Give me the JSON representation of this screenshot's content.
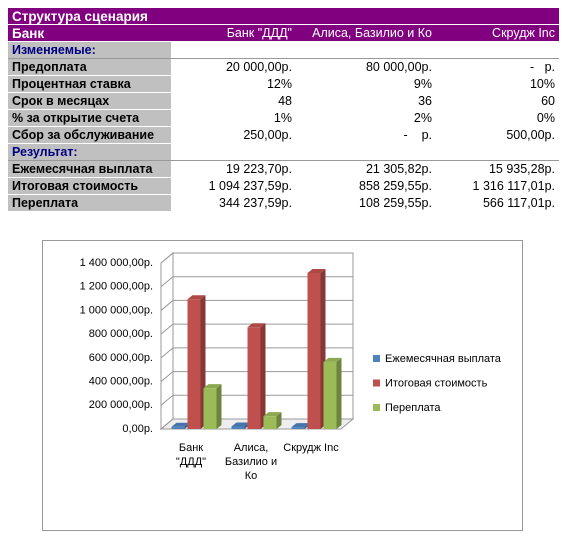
{
  "table": {
    "title": "Структура сценария",
    "header": [
      "Банк",
      "Банк \"ДДД\"",
      "Алиса, Базилио и Ко",
      "Скрудж Inc"
    ],
    "sections": [
      {
        "label": "Изменяемые:",
        "rows": [
          [
            "Предоплата",
            "20 000,00р.",
            "80 000,00р.",
            "-   р."
          ],
          [
            "Процентная ставка",
            "12%",
            "9%",
            "10%"
          ],
          [
            "Срок в месяцах",
            "48",
            "36",
            "60"
          ],
          [
            "% за открытие счета",
            "1%",
            "2%",
            "0%"
          ],
          [
            "Сбор за обслуживание",
            "250,00р.",
            "-    р.",
            "500,00р."
          ]
        ]
      },
      {
        "label": "Результат:",
        "rows": [
          [
            "Ежемесячная выплата",
            "19 223,70р.",
            "21 305,82р.",
            "15 935,28р."
          ],
          [
            "Итоговая стоимость",
            "1 094 237,59р.",
            "858 259,55р.",
            "1 316 117,01р."
          ],
          [
            "Переплата",
            "344 237,59р.",
            "108 259,55р.",
            "566 117,01р."
          ]
        ]
      }
    ]
  },
  "chart_data": {
    "type": "bar",
    "categories": [
      "Банк \"ДДД\"",
      "Алиса, Базилио и Ко",
      "Скрудж Inc"
    ],
    "series": [
      {
        "name": "Ежемесячная выплата",
        "color": "#4f81bd",
        "values": [
          19223.7,
          21305.82,
          15935.28
        ]
      },
      {
        "name": "Итоговая стоимость",
        "color": "#c0504d",
        "values": [
          1094237.59,
          858259.55,
          1316117.01
        ]
      },
      {
        "name": "Переплата",
        "color": "#9bbb59",
        "values": [
          344237.59,
          108259.55,
          566117.01
        ]
      }
    ],
    "ylim": [
      0,
      1400000
    ],
    "yticks": [
      {
        "value": 0,
        "label": "0,00р."
      },
      {
        "value": 200000,
        "label": "200 000,00р."
      },
      {
        "value": 400000,
        "label": "400 000,00р."
      },
      {
        "value": 600000,
        "label": "600 000,00р."
      },
      {
        "value": 800000,
        "label": "800 000,00р."
      },
      {
        "value": 1000000,
        "label": "1 000 000,00р."
      },
      {
        "value": 1200000,
        "label": "1 200 000,00р."
      },
      {
        "value": 1400000,
        "label": "1 400 000,00р."
      }
    ],
    "grid": true,
    "legend": "right"
  }
}
